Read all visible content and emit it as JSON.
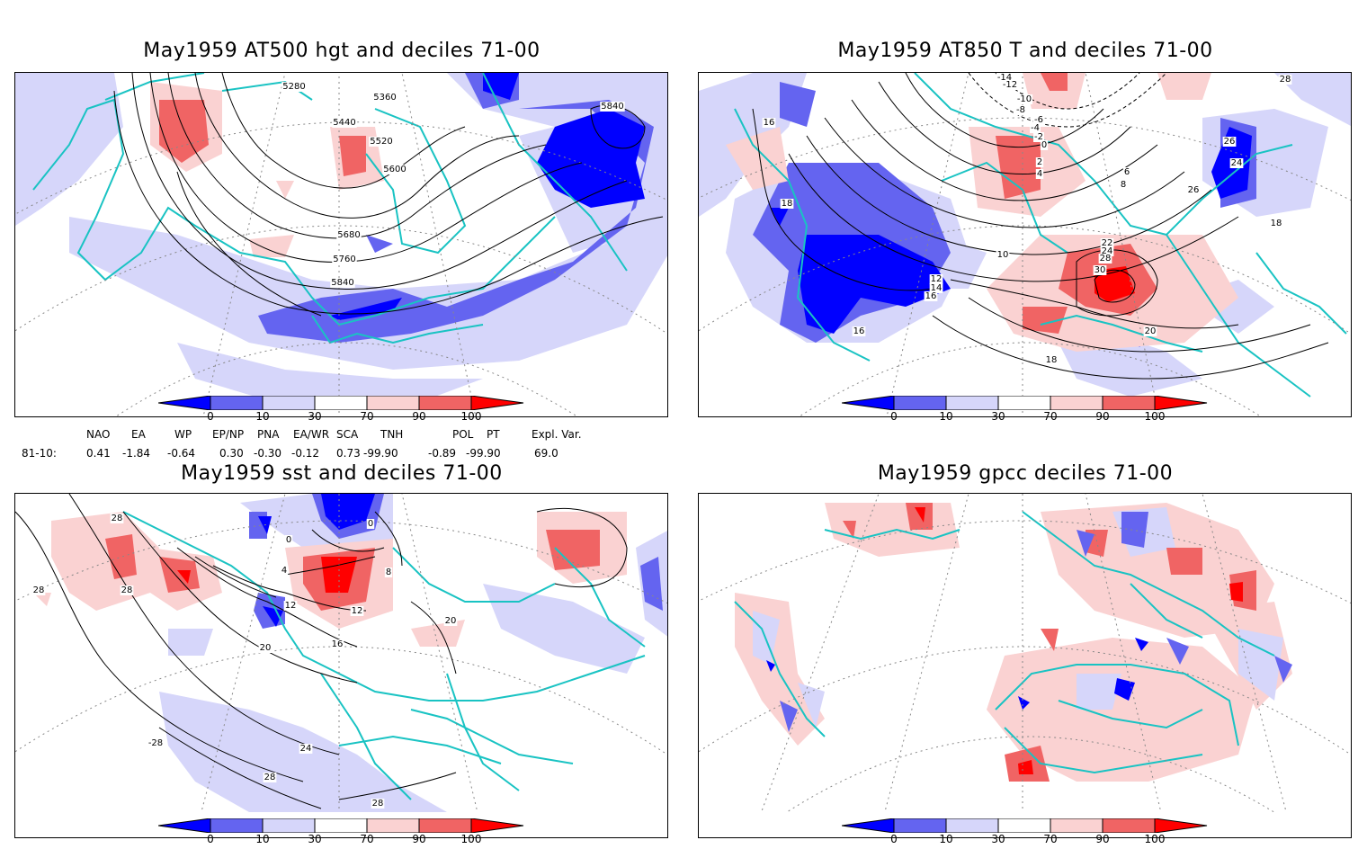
{
  "panels": [
    {
      "id": "p1",
      "title": "May1959 AT500 hgt and deciles 71-00",
      "contour_labels": [
        "5280",
        "5360",
        "5440",
        "5520",
        "5600",
        "5680",
        "5760",
        "5840",
        "5840"
      ]
    },
    {
      "id": "p2",
      "title": "May1959 AT850 T and deciles 71-00",
      "contour_labels": [
        "-14",
        "-12",
        "-10",
        "-8",
        "-6",
        "-4",
        "-2",
        "0",
        "2",
        "4",
        "6",
        "8",
        "10",
        "12",
        "14",
        "16",
        "16",
        "16",
        "18",
        "18",
        "18",
        "20",
        "22",
        "24",
        "24",
        "26",
        "26",
        "28",
        "28",
        "30"
      ]
    },
    {
      "id": "p3",
      "title": "May1959 sst and deciles 71-00",
      "contour_labels": [
        "28",
        "28",
        "28",
        "-28",
        "0",
        "0",
        "4",
        "8",
        "12",
        "12",
        "16",
        "20",
        "20",
        "24",
        "28",
        "28"
      ]
    },
    {
      "id": "p4",
      "title": "May1959 gpcc deciles 71-00",
      "contour_labels": []
    }
  ],
  "colorbar": {
    "ticks": [
      "0",
      "10",
      "30",
      "70",
      "90",
      "100"
    ],
    "colors": {
      "c0": "#0000ff",
      "c1": "#6464f0",
      "c2": "#d6d6fa",
      "c3": "#ffffff",
      "c4": "#fad2d2",
      "c5": "#f06464",
      "c6": "#ff0000"
    }
  },
  "indices": {
    "headers": [
      "NAO",
      "EA",
      "WP",
      "EP/NP",
      "PNA",
      "EA/WR",
      "SCA",
      "TNH",
      "POL",
      "PT",
      "Expl. Var."
    ],
    "row_label": "81-10:",
    "values": [
      "0.41",
      "-1.84",
      "-0.64",
      "0.30",
      "-0.30",
      "-0.12",
      "0.73",
      "-99.90",
      "-0.89",
      "-99.90",
      "69.0"
    ]
  },
  "map_colors": {
    "coast": "#19c3c3",
    "blue_dark": "#0000ff",
    "blue_mid": "#6464f0",
    "blue_light": "#d6d6fa",
    "red_light": "#fad2d2",
    "red_mid": "#f06464",
    "red_dark": "#ff0000"
  }
}
